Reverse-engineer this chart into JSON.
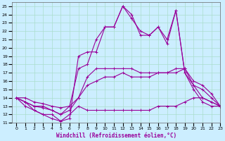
{
  "xlabel": "Windchill (Refroidissement éolien,°C)",
  "bg_color": "#cceeff",
  "line_color": "#990099",
  "grid_color": "#aaddcc",
  "xlim": [
    -0.5,
    23
  ],
  "ylim": [
    11,
    25.5
  ],
  "yticks": [
    11,
    12,
    13,
    14,
    15,
    16,
    17,
    18,
    19,
    20,
    21,
    22,
    23,
    24,
    25
  ],
  "xticks": [
    0,
    1,
    2,
    3,
    4,
    5,
    6,
    7,
    8,
    9,
    10,
    11,
    12,
    13,
    14,
    15,
    16,
    17,
    18,
    19,
    20,
    21,
    22,
    23
  ],
  "series": [
    [
      14.0,
      13.0,
      12.5,
      12.0,
      12.0,
      11.2,
      11.5,
      19.0,
      19.5,
      19.5,
      22.5,
      22.5,
      25.0,
      24.0,
      21.5,
      21.5,
      22.5,
      20.5,
      24.5,
      17.0,
      15.0,
      13.5,
      13.0,
      13.0
    ],
    [
      14.0,
      13.5,
      13.0,
      12.8,
      12.5,
      12.0,
      13.0,
      17.5,
      18.0,
      21.0,
      22.5,
      22.5,
      25.0,
      23.5,
      22.0,
      21.5,
      22.5,
      21.0,
      24.5,
      17.0,
      15.5,
      14.0,
      13.5,
      13.0
    ],
    [
      14.0,
      13.5,
      13.0,
      13.0,
      12.5,
      12.0,
      12.5,
      14.0,
      16.5,
      17.5,
      17.5,
      17.5,
      17.5,
      17.5,
      17.0,
      17.0,
      17.0,
      17.0,
      17.5,
      17.5,
      16.0,
      15.5,
      14.5,
      13.0
    ],
    [
      14.0,
      14.0,
      13.5,
      13.3,
      13.0,
      12.8,
      13.0,
      14.0,
      15.5,
      16.0,
      16.5,
      16.5,
      17.0,
      16.5,
      16.5,
      16.5,
      17.0,
      17.0,
      17.0,
      17.5,
      15.5,
      15.0,
      14.0,
      13.0
    ],
    [
      14.0,
      13.5,
      12.5,
      12.0,
      11.5,
      11.2,
      12.0,
      13.0,
      12.5,
      12.5,
      12.5,
      12.5,
      12.5,
      12.5,
      12.5,
      12.5,
      13.0,
      13.0,
      13.0,
      13.5,
      14.0,
      14.0,
      13.5,
      13.0
    ]
  ]
}
